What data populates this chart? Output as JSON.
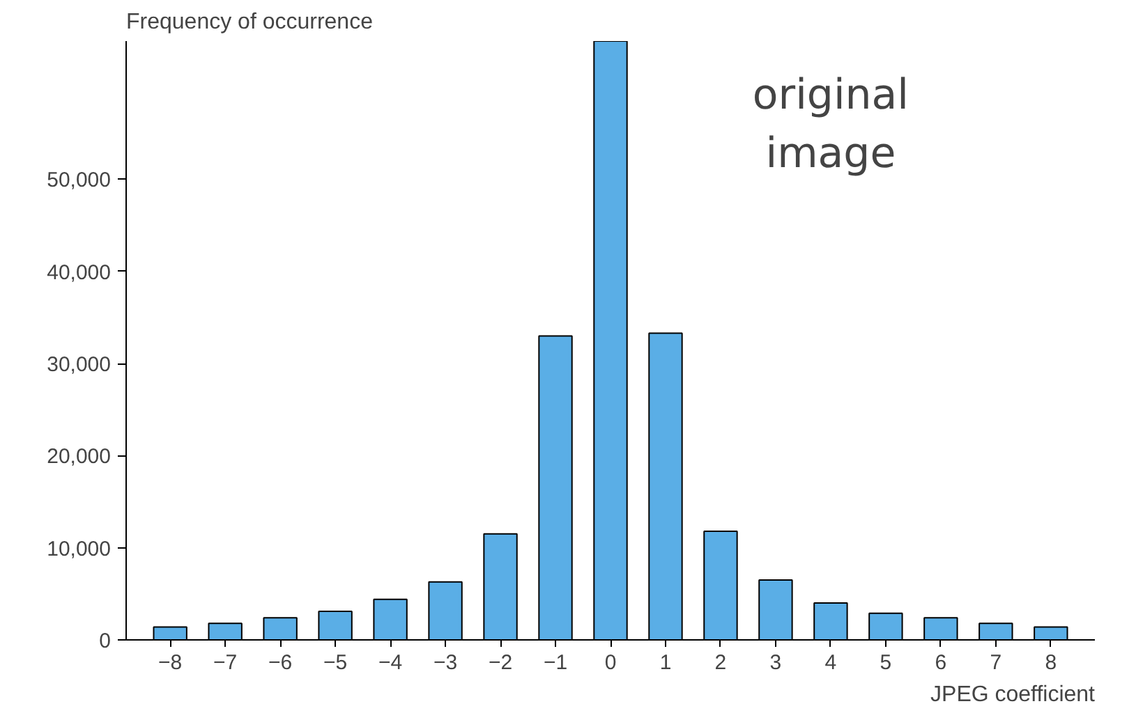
{
  "chart_data": {
    "type": "bar",
    "xlabel": "JPEG coefficient",
    "ylabel": "Frequency of occurrence",
    "categories": [
      "−8",
      "−7",
      "−6",
      "−5",
      "−4",
      "−3",
      "−2",
      "−1",
      "0",
      "1",
      "2",
      "3",
      "4",
      "5",
      "6",
      "7",
      "8"
    ],
    "values": [
      1400,
      1800,
      2400,
      3100,
      4400,
      6300,
      11500,
      33000,
      65000,
      33300,
      11800,
      6500,
      4000,
      2900,
      2400,
      1800,
      1400
    ],
    "color": "#5aaee6",
    "ylim": [
      0,
      65000
    ],
    "yticks": [
      0,
      {
        "value": 10000,
        "label": "10,000"
      },
      {
        "value": 20000,
        "label": "20,000"
      },
      {
        "value": 30000,
        "label": "30,000"
      },
      {
        "value": 40000,
        "label": "40,000"
      },
      {
        "value": 50000,
        "label": "50,000"
      }
    ],
    "grid": false,
    "annotations": [
      "original image"
    ]
  }
}
